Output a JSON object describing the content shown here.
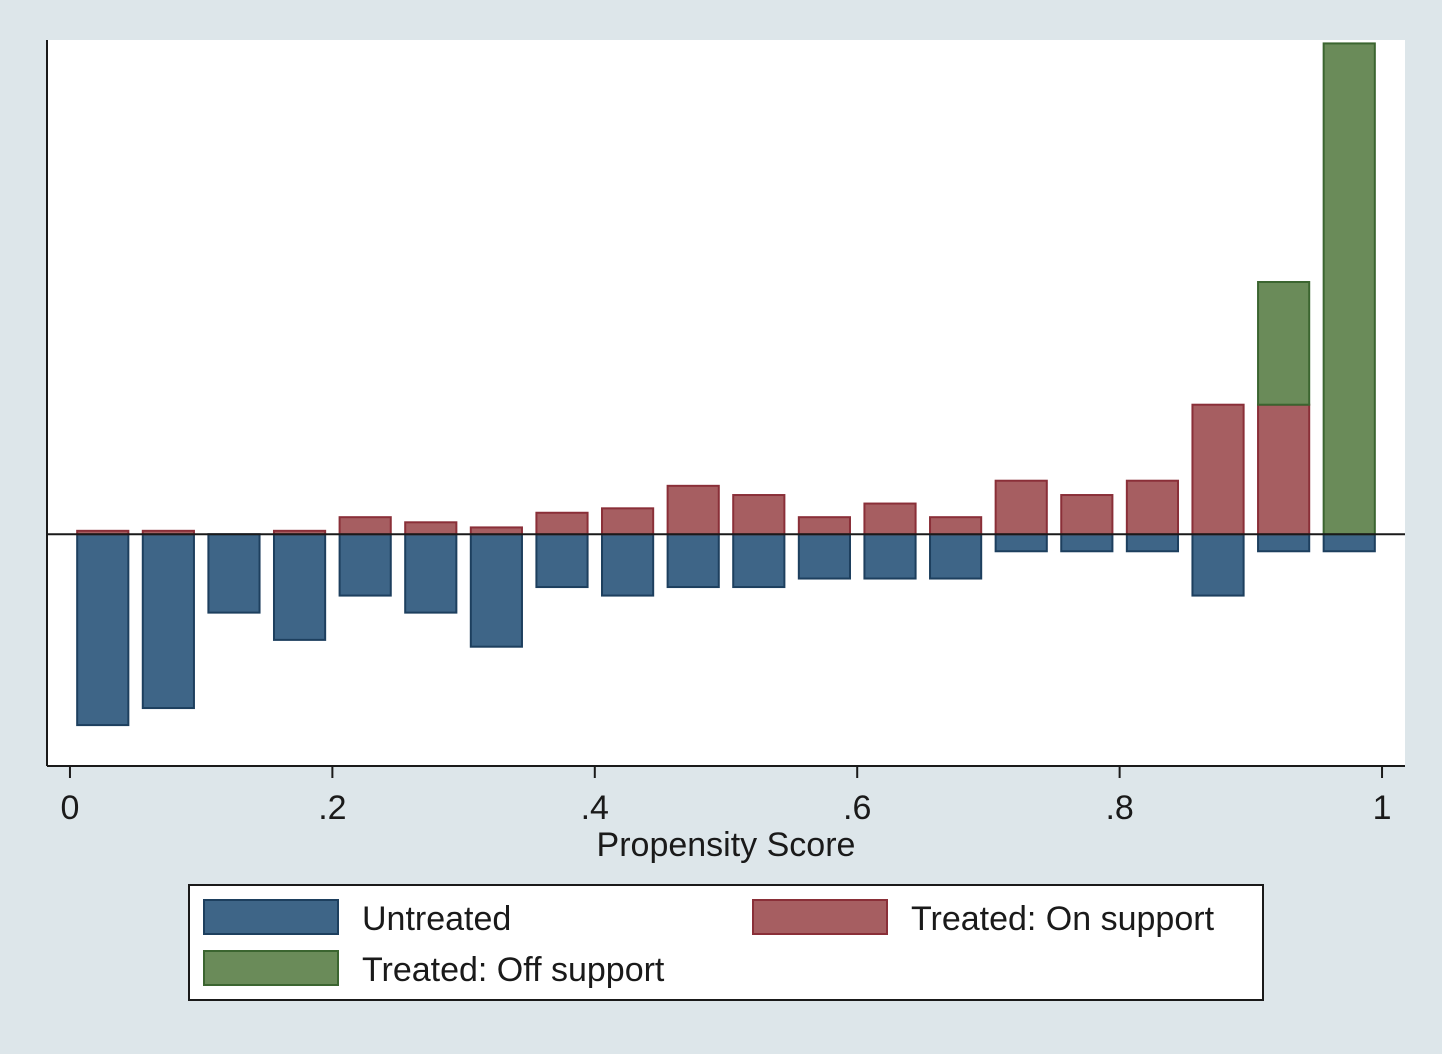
{
  "chart_data": {
    "type": "bar",
    "subtype": "mirrored-stacked-histogram",
    "title": "",
    "xlabel": "Propensity Score",
    "ylabel": "",
    "xlim": [
      -0.0175,
      1.0175
    ],
    "ylim": [
      -6.8,
      14.5
    ],
    "grid": false,
    "bin_width": 0.05,
    "x": [
      0.025,
      0.075,
      0.125,
      0.175,
      0.225,
      0.275,
      0.325,
      0.375,
      0.425,
      0.475,
      0.525,
      0.575,
      0.625,
      0.675,
      0.725,
      0.775,
      0.825,
      0.875,
      0.925,
      0.975
    ],
    "series": [
      {
        "name": "Untreated",
        "color": "#3e6587",
        "edge": "#1d3f5e",
        "direction": "down",
        "values": [
          5.6,
          5.1,
          2.3,
          3.1,
          1.8,
          2.3,
          3.3,
          1.55,
          1.8,
          1.55,
          1.55,
          1.3,
          1.3,
          1.3,
          0.5,
          0.5,
          0.5,
          1.8,
          0.5,
          0.5
        ]
      },
      {
        "name": "Treated: On support",
        "color": "#a65e61",
        "edge": "#8a2f38",
        "direction": "up",
        "values": [
          0.1,
          0.1,
          0,
          0.1,
          0.5,
          0.35,
          0.2,
          0.63,
          0.76,
          1.42,
          1.15,
          0.5,
          0.9,
          0.5,
          1.57,
          1.15,
          1.57,
          3.8,
          3.8,
          0
        ]
      },
      {
        "name": "Treated: Off support",
        "color": "#6a8b59",
        "edge": "#3b6530",
        "direction": "up",
        "values": [
          0,
          0,
          0,
          0,
          0,
          0,
          0,
          0,
          0,
          0,
          0,
          0,
          0,
          0,
          0,
          0,
          0,
          0,
          3.6,
          14.4
        ]
      }
    ],
    "x_ticks": [
      {
        "value": 0,
        "label": "0"
      },
      {
        "value": 0.2,
        "label": ".2"
      },
      {
        "value": 0.4,
        "label": ".4"
      },
      {
        "value": 0.6,
        "label": ".6"
      },
      {
        "value": 0.8,
        "label": ".8"
      },
      {
        "value": 1,
        "label": "1"
      }
    ],
    "legend": {
      "position": "bottom",
      "entries": [
        "Untreated",
        "Treated: On support",
        "Treated: Off support"
      ]
    }
  }
}
